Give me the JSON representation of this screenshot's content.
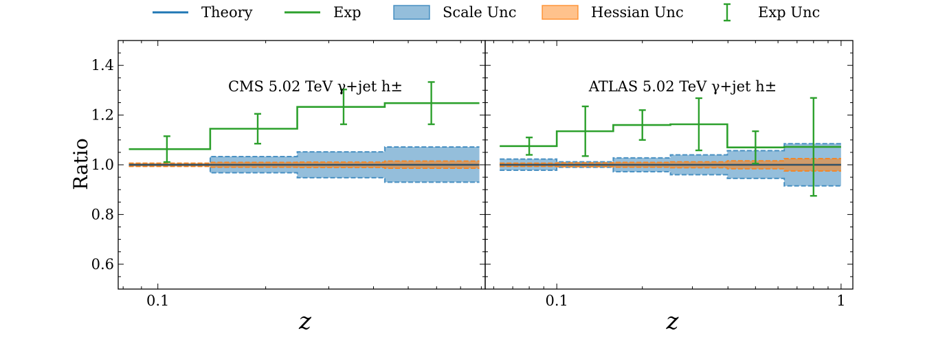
{
  "colors": {
    "theory": "#1f77b4",
    "exp": "#2ca02c",
    "scale_fill": "#1f77b4",
    "hessian_fill": "#ff7f0e"
  },
  "legend": {
    "placement": "top-center",
    "entries": [
      {
        "label": "Theory",
        "marker": "line",
        "color": "#1f77b4"
      },
      {
        "label": "Exp",
        "marker": "line",
        "color": "#2ca02c"
      },
      {
        "label": "Scale Unc",
        "marker": "patch",
        "color": "#1f77b4"
      },
      {
        "label": "Hessian Unc",
        "marker": "patch",
        "color": "#ff7f0e"
      },
      {
        "label": "Exp Unc",
        "marker": "errorbar",
        "color": "#2ca02c"
      }
    ]
  },
  "chart_data": [
    {
      "type": "line",
      "title": "CMS 5.02 TeV γ+jet h±",
      "xlabel": "z",
      "ylabel": "Ratio",
      "xscale": "log",
      "xlim": [
        0.0775,
        0.82
      ],
      "ylim": [
        0.5,
        1.5
      ],
      "xticks": [
        {
          "value": 0.1,
          "label": "0.1"
        }
      ],
      "yticks": [
        {
          "value": 0.6,
          "label": "0.6"
        },
        {
          "value": 0.8,
          "label": "0.8"
        },
        {
          "value": 1.0,
          "label": "1.0"
        },
        {
          "value": 1.2,
          "label": "1.2"
        },
        {
          "value": 1.4,
          "label": "1.4"
        }
      ],
      "bin_edges": [
        0.083,
        0.14,
        0.245,
        0.43,
        0.79
      ],
      "theory": [
        1.0,
        1.0,
        1.0,
        1.0
      ],
      "exp": [
        1.063,
        1.145,
        1.233,
        1.248
      ],
      "scale_unc": {
        "lower": [
          0.995,
          0.968,
          0.948,
          0.93
        ],
        "upper": [
          1.005,
          1.033,
          1.052,
          1.072
        ]
      },
      "hessian_unc": {
        "lower": [
          0.993,
          0.99,
          0.989,
          0.986
        ],
        "upper": [
          1.007,
          1.01,
          1.011,
          1.015
        ]
      },
      "exp_points": [
        {
          "x": 0.106,
          "y": 1.063,
          "err": 0.052
        },
        {
          "x": 0.19,
          "y": 1.145,
          "err": 0.06
        },
        {
          "x": 0.33,
          "y": 1.233,
          "err": 0.07
        },
        {
          "x": 0.58,
          "y": 1.248,
          "err": 0.085
        }
      ]
    },
    {
      "type": "line",
      "title": "ATLAS 5.02 TeV γ+jet h±",
      "xlabel": "z",
      "ylabel": "",
      "xscale": "log",
      "xlim": [
        0.056,
        1.1
      ],
      "ylim": [
        0.5,
        1.5
      ],
      "xticks": [
        {
          "value": 0.1,
          "label": "0.1"
        },
        {
          "value": 1,
          "label": "1"
        }
      ],
      "yticks": [],
      "bin_edges": [
        0.063,
        0.1,
        0.158,
        0.251,
        0.398,
        0.631,
        1.0
      ],
      "theory": [
        1.0,
        1.0,
        1.0,
        1.0,
        1.0,
        1.0
      ],
      "exp": [
        1.075,
        1.135,
        1.16,
        1.163,
        1.07,
        1.072
      ],
      "scale_unc": {
        "lower": [
          0.978,
          0.99,
          0.972,
          0.96,
          0.945,
          0.915
        ],
        "upper": [
          1.023,
          1.012,
          1.028,
          1.04,
          1.057,
          1.085
        ]
      },
      "hessian_unc": {
        "lower": [
          0.993,
          0.992,
          0.99,
          0.988,
          0.984,
          0.975
        ],
        "upper": [
          1.007,
          1.008,
          1.01,
          1.012,
          1.016,
          1.025
        ]
      },
      "exp_points": [
        {
          "x": 0.08,
          "y": 1.075,
          "err": 0.035
        },
        {
          "x": 0.126,
          "y": 1.135,
          "err": 0.1
        },
        {
          "x": 0.2,
          "y": 1.16,
          "err": 0.06
        },
        {
          "x": 0.316,
          "y": 1.163,
          "err": 0.105
        },
        {
          "x": 0.5,
          "y": 1.07,
          "err": 0.065
        },
        {
          "x": 0.8,
          "y": 1.072,
          "err": 0.197
        }
      ]
    }
  ]
}
